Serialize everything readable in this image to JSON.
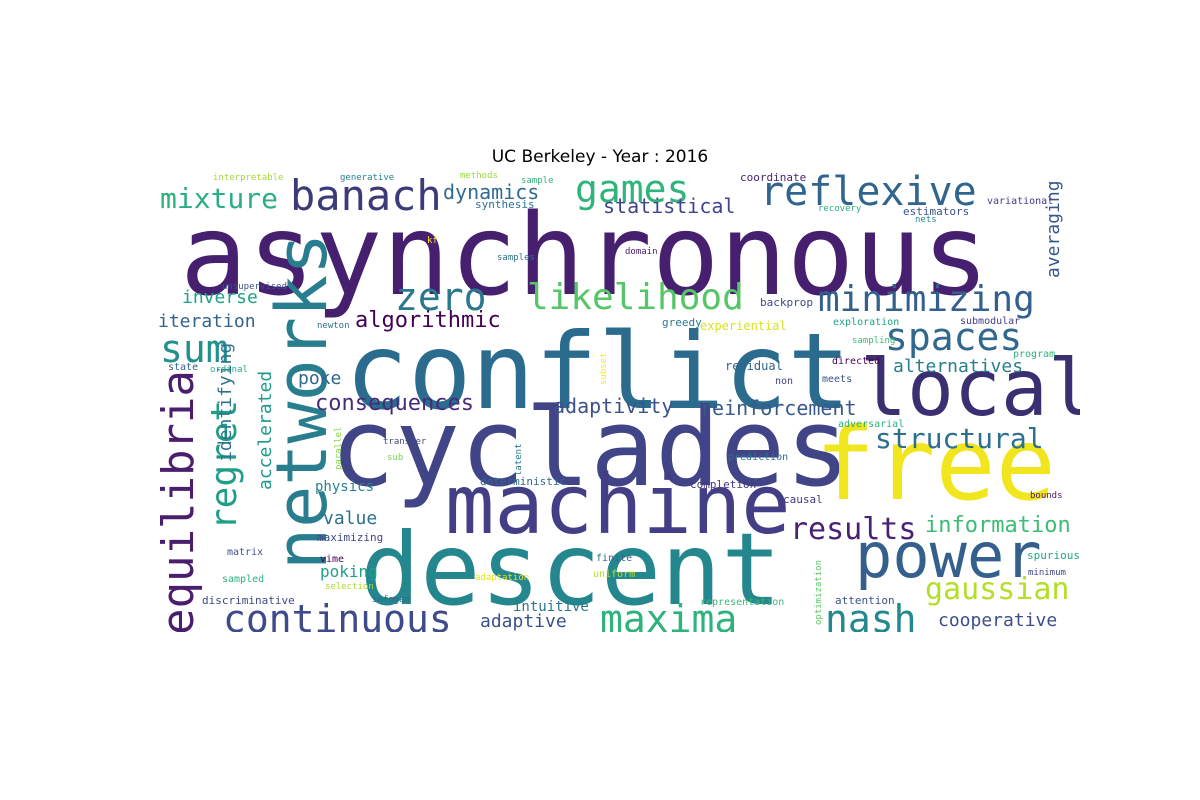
{
  "title": "UC Berkeley - Year : 2016",
  "word_cloud": {
    "words": [
      {
        "text": "asynchronous",
        "color": "#46206f"
      },
      {
        "text": "conflict",
        "color": "#2b6c8e"
      },
      {
        "text": "cyclades",
        "color": "#414487"
      },
      {
        "text": "free",
        "color": "#f1e51d"
      },
      {
        "text": "descent",
        "color": "#25878e"
      },
      {
        "text": "machine",
        "color": "#433e85"
      },
      {
        "text": "networks",
        "color": "#287d8e"
      },
      {
        "text": "local",
        "color": "#3b2f72"
      },
      {
        "text": "power",
        "color": "#355f8d"
      },
      {
        "text": "equilibria",
        "color": "#4a1e6d"
      },
      {
        "text": "banach",
        "color": "#3c3b7a"
      },
      {
        "text": "games",
        "color": "#2fb47c"
      },
      {
        "text": "reflexive",
        "color": "#31658e"
      },
      {
        "text": "zero",
        "color": "#2a788e"
      },
      {
        "text": "likelihood",
        "color": "#55c667"
      },
      {
        "text": "minimizing",
        "color": "#33608d"
      },
      {
        "text": "sum",
        "color": "#22908d"
      },
      {
        "text": "spaces",
        "color": "#31688e"
      },
      {
        "text": "maxima",
        "color": "#2eb37c"
      },
      {
        "text": "continuous",
        "color": "#3e4a89"
      },
      {
        "text": "nash",
        "color": "#23898e"
      },
      {
        "text": "regret",
        "color": "#1f9f88"
      },
      {
        "text": "mixture",
        "color": "#2ab07f"
      },
      {
        "text": "results",
        "color": "#482173"
      },
      {
        "text": "gaussian",
        "color": "#b5de2b"
      },
      {
        "text": "structural",
        "color": "#2d708e"
      },
      {
        "text": "information",
        "color": "#3dbc74"
      },
      {
        "text": "algorithmic",
        "color": "#440154"
      },
      {
        "text": "consequences",
        "color": "#472c7a"
      },
      {
        "text": "reinforcement",
        "color": "#38598c"
      },
      {
        "text": "adaptivity",
        "color": "#3b528b"
      },
      {
        "text": "statistical",
        "color": "#3f4788"
      },
      {
        "text": "dynamics",
        "color": "#306a8e"
      },
      {
        "text": "alternatives",
        "color": "#277f8e"
      },
      {
        "text": "cooperative",
        "color": "#3d4e8a"
      },
      {
        "text": "adaptive",
        "color": "#3b518b"
      },
      {
        "text": "identifying",
        "color": "#2c738e"
      },
      {
        "text": "accelerated",
        "color": "#1e9b8a"
      },
      {
        "text": "iteration",
        "color": "#32648e"
      },
      {
        "text": "inverse",
        "color": "#20a386"
      },
      {
        "text": "averaging",
        "color": "#38598c"
      },
      {
        "text": "value",
        "color": "#2c718e"
      },
      {
        "text": "poke",
        "color": "#31668e"
      },
      {
        "text": "poking",
        "color": "#1fa188"
      },
      {
        "text": "physics",
        "color": "#26828e"
      },
      {
        "text": "intuitive",
        "color": "#2a768e"
      },
      {
        "text": "interpretable",
        "color": "#a2da37"
      },
      {
        "text": "generative",
        "color": "#26828e"
      },
      {
        "text": "methods",
        "color": "#9bd93c"
      },
      {
        "text": "sample",
        "color": "#35b779"
      },
      {
        "text": "synthesis",
        "color": "#2c728e"
      },
      {
        "text": "coordinate",
        "color": "#482475"
      },
      {
        "text": "estimators",
        "color": "#3a538b"
      },
      {
        "text": "variational",
        "color": "#443a83"
      },
      {
        "text": "recovery",
        "color": "#2ab07f"
      },
      {
        "text": "nets",
        "color": "#23898e"
      },
      {
        "text": "kf",
        "color": "#fde725"
      },
      {
        "text": "domain",
        "color": "#481a6c"
      },
      {
        "text": "samples",
        "color": "#2c728e"
      },
      {
        "text": "unsupervised",
        "color": "#3b528b"
      },
      {
        "text": "newton",
        "color": "#2d708e"
      },
      {
        "text": "backprop",
        "color": "#3e4989"
      },
      {
        "text": "greedy",
        "color": "#2a788e"
      },
      {
        "text": "experiential",
        "color": "#d8e219"
      },
      {
        "text": "exploration",
        "color": "#20a486"
      },
      {
        "text": "submodular",
        "color": "#424086"
      },
      {
        "text": "sampling",
        "color": "#3bbb75"
      },
      {
        "text": "program",
        "color": "#2db27d"
      },
      {
        "text": "state",
        "color": "#33638d"
      },
      {
        "text": "ordinal",
        "color": "#27ad81"
      },
      {
        "text": "residual",
        "color": "#33638d"
      },
      {
        "text": "directed",
        "color": "#440154"
      },
      {
        "text": "non",
        "color": "#414487"
      },
      {
        "text": "meets",
        "color": "#3b528b"
      },
      {
        "text": "subset",
        "color": "#fde725"
      },
      {
        "text": "adversarial",
        "color": "#29af7f"
      },
      {
        "text": "transfer",
        "color": "#3e4a89"
      },
      {
        "text": "parallel",
        "color": "#86d549"
      },
      {
        "text": "sub",
        "color": "#7ad151"
      },
      {
        "text": "latent",
        "color": "#2a788e"
      },
      {
        "text": "prediction",
        "color": "#2b758e"
      },
      {
        "text": "deterministic",
        "color": "#31688e"
      },
      {
        "text": "completion",
        "color": "#443983"
      },
      {
        "text": "causal",
        "color": "#453882"
      },
      {
        "text": "bounds",
        "color": "#481668"
      },
      {
        "text": "matrix",
        "color": "#3b528b"
      },
      {
        "text": "maximizing",
        "color": "#3e4989"
      },
      {
        "text": "vime",
        "color": "#440154"
      },
      {
        "text": "finite",
        "color": "#31688e"
      },
      {
        "text": "spurious",
        "color": "#22a884"
      },
      {
        "text": "minimum",
        "color": "#3f4788"
      },
      {
        "text": "sampled",
        "color": "#2db27d"
      },
      {
        "text": "adaptation",
        "color": "#e5e419"
      },
      {
        "text": "uniform",
        "color": "#b5de2b"
      },
      {
        "text": "optimization",
        "color": "#5ec962"
      },
      {
        "text": "discriminative",
        "color": "#3f4889"
      },
      {
        "text": "selection",
        "color": "#addc30"
      },
      {
        "text": "infogan",
        "color": "#31688e"
      },
      {
        "text": "representation",
        "color": "#38b977"
      },
      {
        "text": "attention",
        "color": "#3b528b"
      }
    ]
  }
}
